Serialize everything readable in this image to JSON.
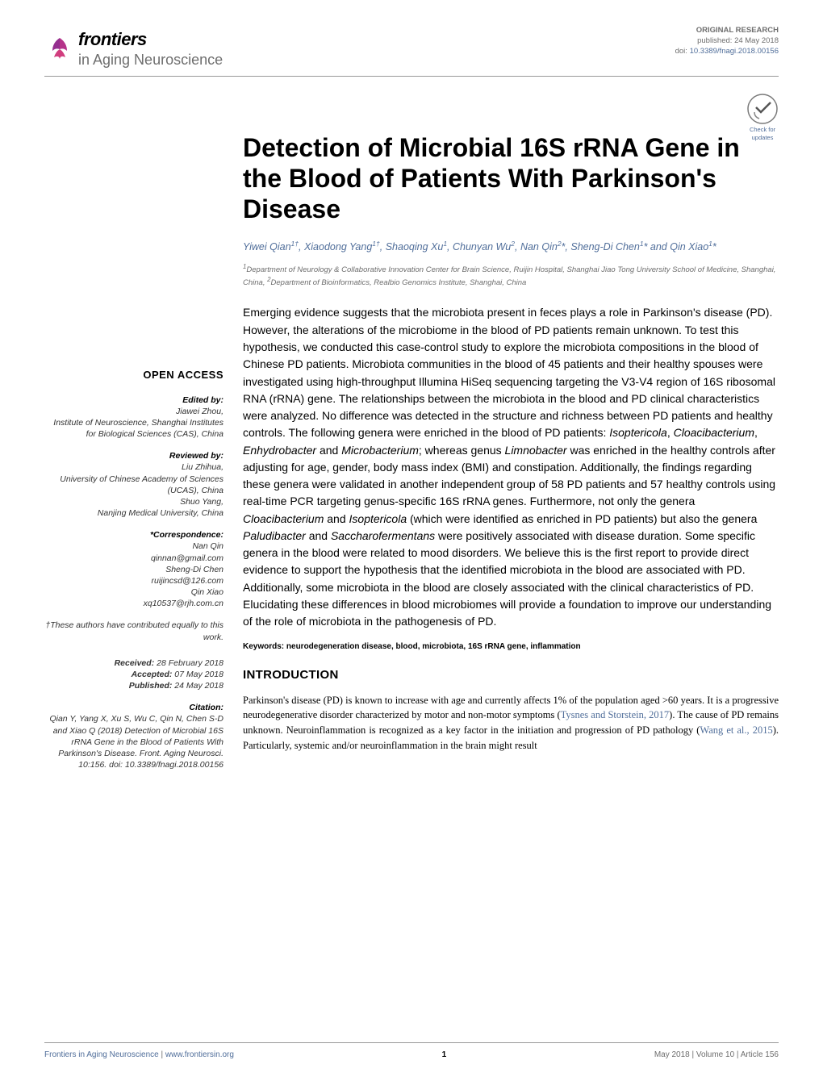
{
  "journal": {
    "frontiers": "frontiers",
    "name": "in Aging Neuroscience"
  },
  "meta": {
    "type": "ORIGINAL RESEARCH",
    "published_label": "published:",
    "published_date": "24 May 2018",
    "doi_label": "doi:",
    "doi": "10.3389/fnagi.2018.00156"
  },
  "check_updates": {
    "line1": "Check for",
    "line2": "updates"
  },
  "title": "Detection of Microbial 16S rRNA Gene in the Blood of Patients With Parkinson's Disease",
  "authors_html": "Yiwei Qian<sup>1†</sup>, Xiaodong Yang<sup>1†</sup>, Shaoqing Xu<sup>1</sup>, Chunyan Wu<sup>2</sup>, Nan Qin<sup>2</sup>*, Sheng-Di Chen<sup>1</sup>* and Qin Xiao<sup>1</sup>*",
  "affiliations_html": "<sup>1</sup>Department of Neurology & Collaborative Innovation Center for Brain Science, Ruijin Hospital, Shanghai Jiao Tong University School of Medicine, Shanghai, China, <sup>2</sup>Department of Bioinformatics, Realbio Genomics Institute, Shanghai, China",
  "abstract": "Emerging evidence suggests that the microbiota present in feces plays a role in Parkinson's disease (PD). However, the alterations of the microbiome in the blood of PD patients remain unknown. To test this hypothesis, we conducted this case-control study to explore the microbiota compositions in the blood of Chinese PD patients. Microbiota communities in the blood of 45 patients and their healthy spouses were investigated using high-throughput Illumina HiSeq sequencing targeting the V3-V4 region of 16S ribosomal RNA (rRNA) gene. The relationships between the microbiota in the blood and PD clinical characteristics were analyzed. No difference was detected in the structure and richness between PD patients and healthy controls. The following genera were enriched in the blood of PD patients: <span class=\"gi\">Isoptericola</span>, <span class=\"gi\">Cloacibacterium</span>, <span class=\"gi\">Enhydrobacter</span> and <span class=\"gi\">Microbacterium</span>; whereas genus <span class=\"gi\">Limnobacter</span> was enriched in the healthy controls after adjusting for age, gender, body mass index (BMI) and constipation. Additionally, the findings regarding these genera were validated in another independent group of 58 PD patients and 57 healthy controls using real-time PCR targeting genus-specific 16S rRNA genes. Furthermore, not only the genera <span class=\"gi\">Cloacibacterium</span> and <span class=\"gi\">Isoptericola</span> (which were identified as enriched in PD patients) but also the genera <span class=\"gi\">Paludibacter</span> and <span class=\"gi\">Saccharofermentans</span> were positively associated with disease duration. Some specific genera in the blood were related to mood disorders. We believe this is the first report to provide direct evidence to support the hypothesis that the identified microbiota in the blood are associated with PD. Additionally, some microbiota in the blood are closely associated with the clinical characteristics of PD. Elucidating these differences in blood microbiomes will provide a foundation to improve our understanding of the role of microbiota in the pathogenesis of PD.",
  "keywords": "Keywords: neurodegeneration disease, blood, microbiota, 16S rRNA gene, inflammation",
  "section": {
    "heading": "INTRODUCTION",
    "body": "Parkinson's disease (PD) is known to increase with age and currently affects 1% of the population aged >60 years. It is a progressive neurodegenerative disorder characterized by motor and non-motor symptoms (<span class=\"ref\">Tysnes and Storstein, 2017</span>). The cause of PD remains unknown. Neuroinflammation is recognized as a key factor in the initiation and progression of PD pathology (<span class=\"ref\">Wang et al., 2015</span>). Particularly, systemic and/or neuroinflammation in the brain might result"
  },
  "sidebar": {
    "open_access": "OPEN ACCESS",
    "edited_by_label": "Edited by:",
    "edited_by_name": "Jiawei Zhou,",
    "edited_by_aff": "Institute of Neuroscience, Shanghai Institutes for Biological Sciences (CAS), China",
    "reviewed_by_label": "Reviewed by:",
    "rev1_name": "Liu Zhihua,",
    "rev1_aff": "University of Chinese Academy of Sciences (UCAS), China",
    "rev2_name": "Shuo Yang,",
    "rev2_aff": "Nanjing Medical University, China",
    "correspondence_label": "*Correspondence:",
    "corr1_name": "Nan Qin",
    "corr1_email": "qinnan@gmail.com",
    "corr2_name": "Sheng-Di Chen",
    "corr2_email": "ruijincsd@126.com",
    "corr3_name": "Qin Xiao",
    "corr3_email": "xq10537@rjh.com.cn",
    "contrib_note": "†These authors have contributed equally to this work.",
    "received_label": "Received:",
    "received_date": "28 February 2018",
    "accepted_label": "Accepted:",
    "accepted_date": "07 May 2018",
    "published_label": "Published:",
    "published_date": "24 May 2018",
    "citation_label": "Citation:",
    "citation_text": "Qian Y, Yang X, Xu S, Wu C, Qin N, Chen S-D and Xiao Q (2018) Detection of Microbial 16S rRNA Gene in the Blood of Patients With Parkinson's Disease. Front. Aging Neurosci. 10:156. doi: 10.3389/fnagi.2018.00156"
  },
  "footer": {
    "left_journal": "Frontiers in Aging Neuroscience",
    "left_sep": " | ",
    "left_url": "www.frontiersin.org",
    "page": "1",
    "right": "May 2018 | Volume 10 | Article 156"
  },
  "colors": {
    "link": "#506e9a",
    "muted": "#6e6e6e",
    "text": "#000000",
    "rule": "#999999",
    "leaf1": "#952e8f",
    "leaf2": "#b5338a",
    "leaf3": "#d13d7e"
  }
}
